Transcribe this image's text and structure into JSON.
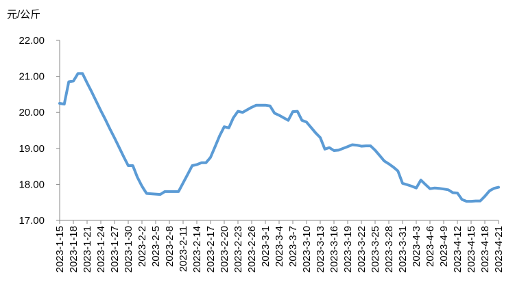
{
  "chart_data": {
    "type": "line",
    "y_axis_label": "元/公斤",
    "categories": [
      "2023-1-15",
      null,
      null,
      "2023-1-18",
      null,
      null,
      "2023-1-21",
      null,
      null,
      "2023-1-24",
      null,
      null,
      "2023-1-27",
      null,
      null,
      "2023-1-30",
      null,
      null,
      "2023-2-2",
      null,
      null,
      "2023-2-5",
      null,
      null,
      "2023-2-8",
      null,
      null,
      "2023-2-11",
      null,
      null,
      "2023-2-14",
      null,
      null,
      "2023-2-17",
      null,
      null,
      "2023-2-20",
      null,
      null,
      "2023-2-23",
      null,
      null,
      "2023-2-26",
      null,
      null,
      "2023-3-1",
      null,
      null,
      "2023-3-4",
      null,
      null,
      "2023-3-7",
      null,
      null,
      "2023-3-10",
      null,
      null,
      "2023-3-13",
      null,
      null,
      "2023-3-16",
      null,
      null,
      "2023-3-19",
      null,
      null,
      "2023-3-22",
      null,
      null,
      "2023-3-25",
      null,
      null,
      "2023-3-28",
      null,
      null,
      "2023-3-31",
      null,
      null,
      "2023-4-3",
      null,
      null,
      "2023-4-6",
      null,
      null,
      "2023-4-9",
      null,
      null,
      "2023-4-12",
      null,
      null,
      "2023-4-15",
      null,
      null,
      "2023-4-18",
      null,
      null,
      "2023-4-21"
    ],
    "values": [
      20.25,
      20.23,
      20.85,
      20.87,
      21.08,
      21.08,
      20.82,
      20.57,
      20.31,
      20.05,
      19.8,
      19.54,
      19.29,
      19.03,
      18.77,
      18.52,
      18.52,
      18.2,
      17.95,
      17.75,
      17.74,
      17.73,
      17.72,
      17.8,
      17.8,
      17.8,
      17.8,
      18.04,
      18.28,
      18.52,
      18.55,
      18.6,
      18.6,
      18.75,
      19.05,
      19.35,
      19.6,
      19.57,
      19.85,
      20.03,
      20.0,
      20.07,
      20.14,
      20.2,
      20.2,
      20.2,
      20.18,
      19.98,
      19.92,
      19.85,
      19.78,
      20.02,
      20.03,
      19.78,
      19.73,
      19.58,
      19.43,
      19.3,
      18.98,
      19.02,
      18.94,
      18.95,
      19.0,
      19.05,
      19.1,
      19.09,
      19.06,
      19.07,
      19.07,
      18.95,
      18.8,
      18.65,
      18.57,
      18.48,
      18.37,
      18.03,
      17.99,
      17.95,
      17.9,
      18.12,
      18.0,
      17.88,
      17.9,
      17.89,
      17.87,
      17.85,
      17.77,
      17.76,
      17.58,
      17.53,
      17.53,
      17.54,
      17.54,
      17.67,
      17.82,
      17.89,
      17.92
    ],
    "color": "#5b9bd5",
    "ylim": [
      17,
      22
    ],
    "yticks": [
      {
        "value": 17,
        "label": "17.00"
      },
      {
        "value": 18,
        "label": "18.00"
      },
      {
        "value": 19,
        "label": "19.00"
      },
      {
        "value": 20,
        "label": "20.00"
      },
      {
        "value": 21,
        "label": "21.00"
      },
      {
        "value": 22,
        "label": "22.00"
      }
    ],
    "grid": false
  }
}
